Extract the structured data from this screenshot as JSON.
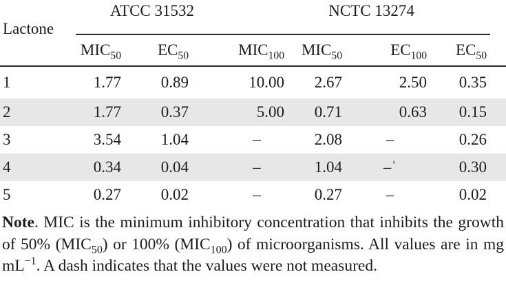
{
  "table": {
    "row_header": "Lactone",
    "col_groups": [
      {
        "label": "ATCC 31532"
      },
      {
        "label": "NCTC 13274"
      }
    ],
    "sub_headers": [
      {
        "base": "MIC",
        "sub": "50"
      },
      {
        "base": "EC",
        "sub": "50"
      },
      {
        "base": "MIC",
        "sub": "100"
      },
      {
        "base": "MIC",
        "sub": "50"
      },
      {
        "base": "EC",
        "sub": "100"
      },
      {
        "base": "EC",
        "sub": "50"
      }
    ],
    "rows": [
      {
        "lactone": "1",
        "shaded": false,
        "cells": [
          "1.77",
          "0.89",
          "10.00",
          "2.67",
          "2.50",
          "0.35"
        ]
      },
      {
        "lactone": "2",
        "shaded": true,
        "cells": [
          "1.77",
          "0.37",
          "5.00",
          "0.71",
          "0.63",
          "0.15"
        ]
      },
      {
        "lactone": "3",
        "shaded": false,
        "cells": [
          "3.54",
          "1.04",
          "–",
          "2.08",
          "–",
          "0.26"
        ]
      },
      {
        "lactone": "4",
        "shaded": true,
        "cells": [
          "0.34",
          "0.04",
          "–",
          "1.04",
          "–ˈ",
          "0.30"
        ]
      },
      {
        "lactone": "5",
        "shaded": false,
        "cells": [
          "0.27",
          "0.02",
          "–",
          "0.27",
          "–",
          "0.02"
        ]
      }
    ]
  },
  "note": {
    "segments": [
      {
        "text": "Note",
        "style": "bold"
      },
      {
        "text": ". MIC is the minimum inhibitory concentration that inhibits the growth of 50% (MIC",
        "style": "plain"
      },
      {
        "text": "50",
        "style": "sub"
      },
      {
        "text": ") or 100% (MIC",
        "style": "plain"
      },
      {
        "text": "100",
        "style": "sub"
      },
      {
        "text": ") of microorganisms. All values are in mg mL",
        "style": "plain"
      },
      {
        "text": "−1",
        "style": "sup"
      },
      {
        "text": ". A dash indicates that the values were not measured.",
        "style": "plain"
      }
    ]
  },
  "colors": {
    "shaded_row": "#e7e7e7",
    "text": "#1c1c1c",
    "rule": "#2a2a2a"
  }
}
